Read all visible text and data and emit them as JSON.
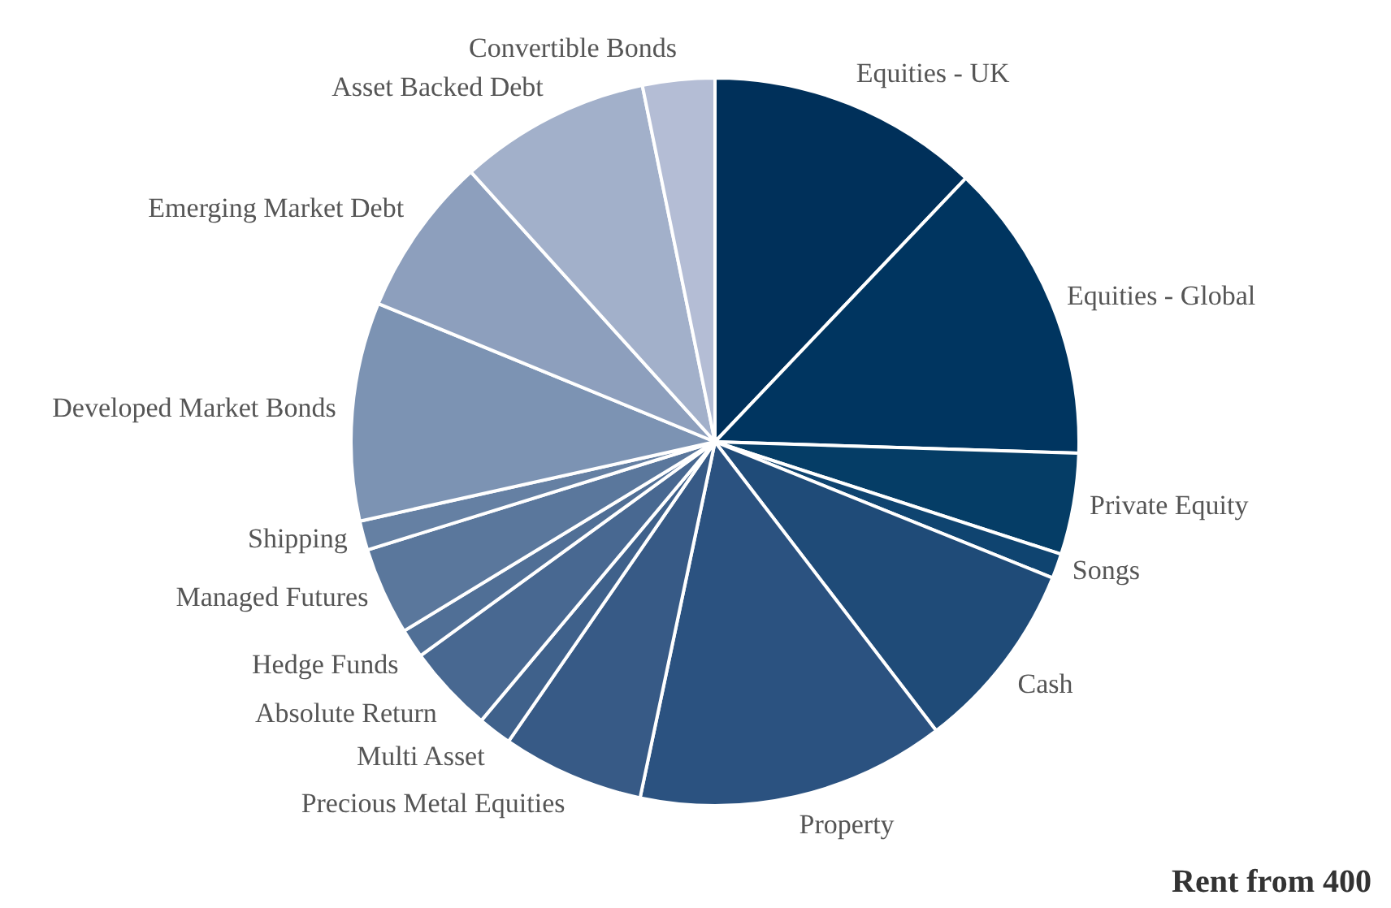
{
  "chart_data": {
    "type": "pie",
    "categories": [
      "Equities - UK",
      "Equities - Global",
      "Private Equity",
      "Songs",
      "Cash",
      "Property",
      "Precious Metal Equities",
      "Multi Asset",
      "Absolute Return",
      "Hedge Funds",
      "Managed Futures",
      "Shipping",
      "Developed Market Bonds",
      "Emerging Market Debt",
      "Asset Backed Debt",
      "Convertible Bonds"
    ],
    "values": [
      12.1,
      13.4,
      4.5,
      1.1,
      8.5,
      13.7,
      6.3,
      1.5,
      3.9,
      1.3,
      3.9,
      1.3,
      9.7,
      7.1,
      8.5,
      3.2
    ],
    "colors": [
      "#00305a",
      "#003560",
      "#053d66",
      "#0f4470",
      "#1f4b78",
      "#2b5280",
      "#375a86",
      "#3f618b",
      "#486891",
      "#506f96",
      "#5a779c",
      "#6580a3",
      "#7c93b3",
      "#8d9fbd",
      "#a2b0ca",
      "#b4bdd5"
    ],
    "legend": false,
    "annotations": [
      "Rent from 400"
    ]
  }
}
